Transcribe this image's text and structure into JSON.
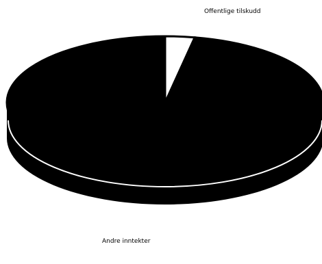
{
  "chart_data": {
    "type": "pie",
    "categories": [
      "Offentlige tilskudd",
      "Andre inntekter"
    ],
    "values": [
      3,
      97
    ],
    "unit": "percent",
    "style": "3d",
    "colors": {
      "Offentlige tilskudd": "#ffffff",
      "Andre inntekter": "#000000",
      "outline": "#000000",
      "separator": "#ffffff"
    },
    "labels": {
      "Offentlige tilskudd": "Offentlige tilskudd",
      "Andre inntekter": "Andre inntekter"
    }
  }
}
